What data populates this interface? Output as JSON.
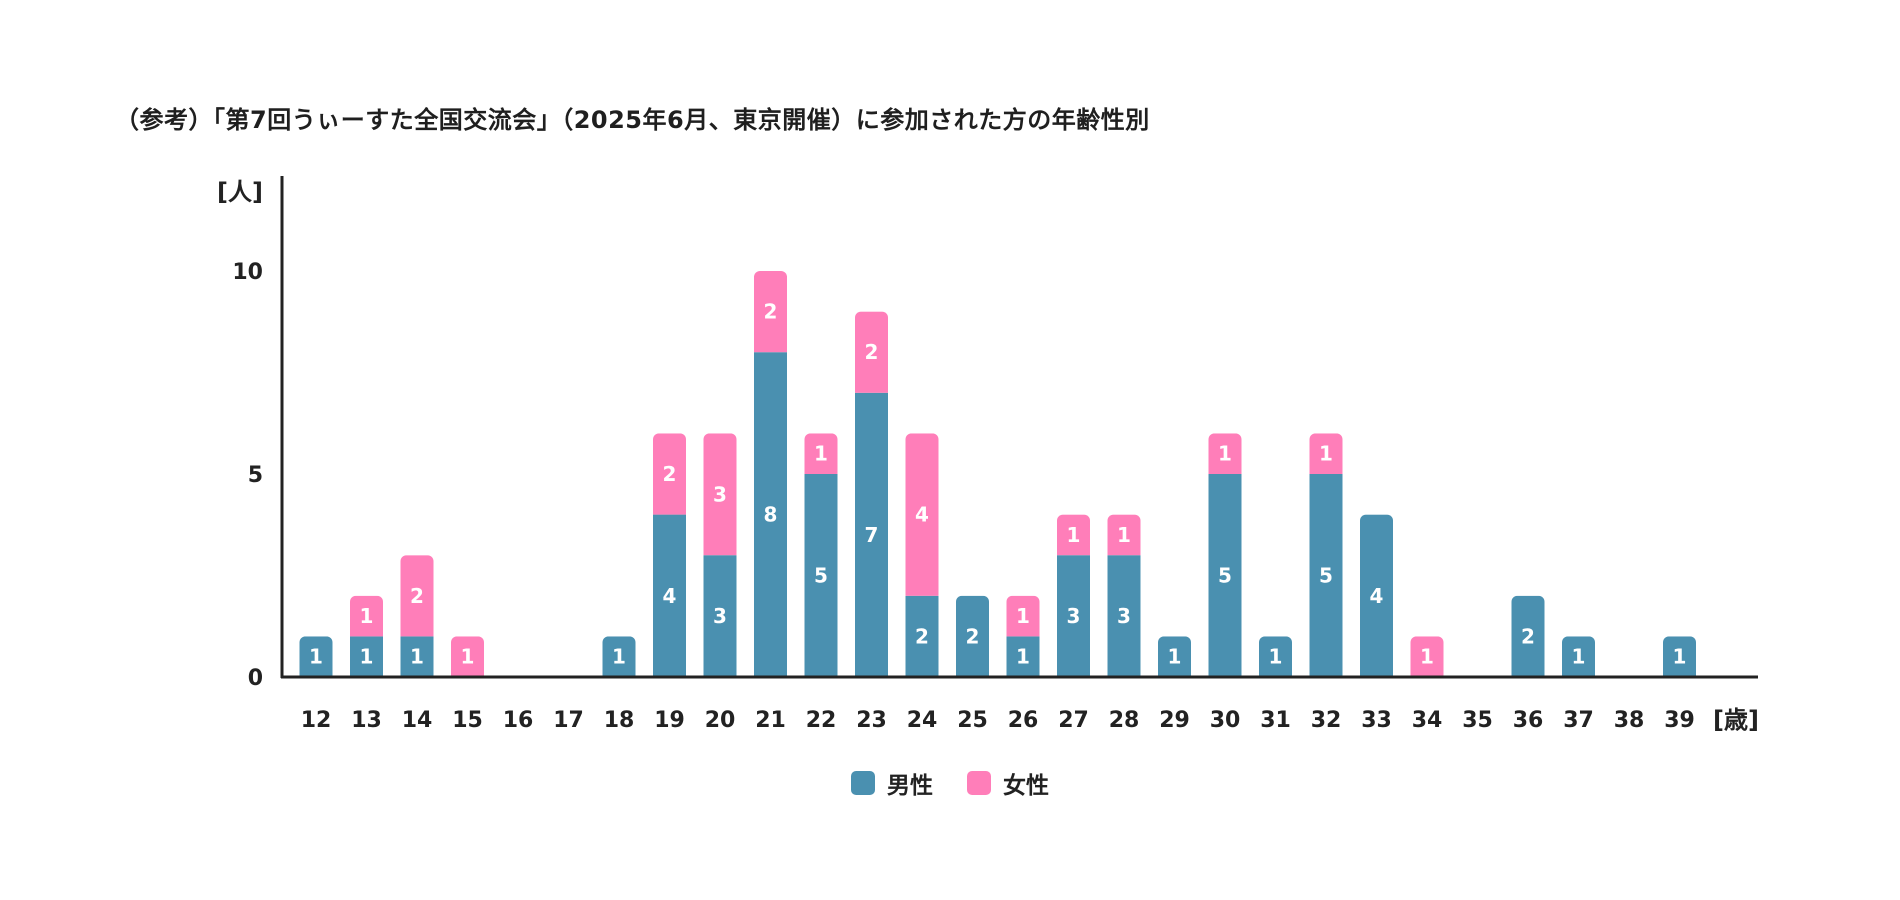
{
  "chart_data": {
    "type": "bar",
    "stacked": true,
    "title": "（参考）「第7回うぃーすた全国交流会」（2025年6月、東京開催）に参加された方の年齢性別",
    "ylabel": "[人]",
    "xlabel": "[歳]",
    "ylim": [
      0,
      10
    ],
    "yticks": [
      0,
      5,
      10
    ],
    "categories": [
      "12",
      "13",
      "14",
      "15",
      "16",
      "17",
      "18",
      "19",
      "20",
      "21",
      "22",
      "23",
      "24",
      "25",
      "26",
      "27",
      "28",
      "29",
      "30",
      "31",
      "32",
      "33",
      "34",
      "35",
      "36",
      "37",
      "38",
      "39"
    ],
    "series": [
      {
        "name": "男性",
        "color": "#4a90b0",
        "values": [
          1,
          1,
          1,
          0,
          0,
          0,
          1,
          4,
          3,
          8,
          5,
          7,
          2,
          2,
          1,
          3,
          3,
          1,
          5,
          1,
          5,
          4,
          0,
          0,
          2,
          1,
          0,
          1
        ]
      },
      {
        "name": "女性",
        "color": "#ff7eb9",
        "values": [
          0,
          1,
          2,
          1,
          0,
          0,
          0,
          2,
          3,
          2,
          1,
          2,
          4,
          0,
          1,
          1,
          1,
          0,
          1,
          0,
          1,
          0,
          1,
          0,
          0,
          0,
          0,
          0
        ]
      }
    ],
    "grid": false,
    "legend_position": "bottom"
  }
}
